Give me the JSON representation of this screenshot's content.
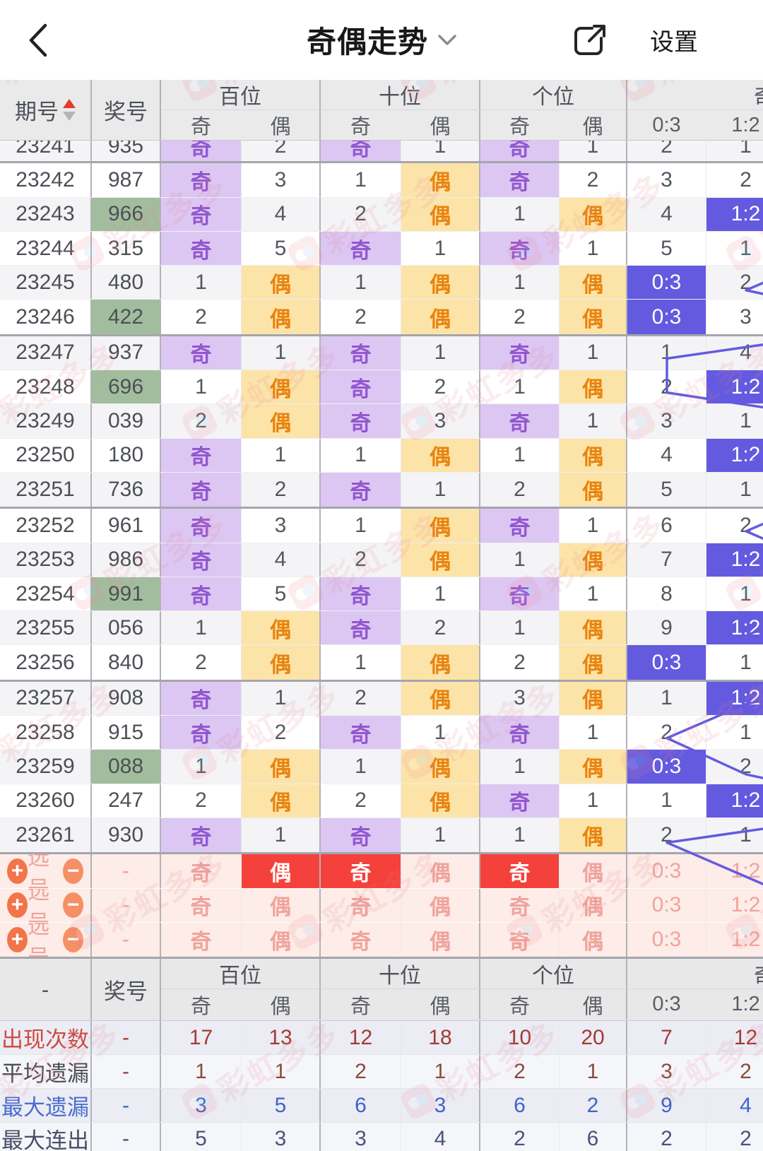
{
  "nav": {
    "title": "奇偶走势",
    "settings_label": "设置"
  },
  "watermark": {
    "text": "彩虹多多"
  },
  "table": {
    "period_header": "期号",
    "number_header": "奖号",
    "groups": [
      "百位",
      "十位",
      "个位",
      "奇偶比"
    ],
    "sub_headers": [
      "奇",
      "偶",
      "奇",
      "偶",
      "奇",
      "偶",
      "0:3",
      "1:2"
    ],
    "rows": [
      {
        "period": "23241",
        "number": "935",
        "green": false,
        "partial": true,
        "cells": [
          "奇",
          "2",
          "奇",
          "1",
          "奇",
          "1",
          "2",
          "1"
        ]
      },
      {
        "period": "23242",
        "number": "987",
        "green": false,
        "partial": false,
        "cells": [
          "奇",
          "3",
          "1",
          "偶",
          "奇",
          "2",
          "3",
          "2"
        ]
      },
      {
        "period": "23243",
        "number": "966",
        "green": true,
        "partial": false,
        "cells": [
          "奇",
          "4",
          "2",
          "偶",
          "1",
          "偶",
          "4",
          "1:2"
        ]
      },
      {
        "period": "23244",
        "number": "315",
        "green": false,
        "partial": false,
        "cells": [
          "奇",
          "5",
          "奇",
          "1",
          "奇",
          "1",
          "5",
          "1"
        ]
      },
      {
        "period": "23245",
        "number": "480",
        "green": false,
        "partial": false,
        "cells": [
          "1",
          "偶",
          "1",
          "偶",
          "1",
          "偶",
          "0:3",
          "2"
        ]
      },
      {
        "period": "23246",
        "number": "422",
        "green": true,
        "partial": false,
        "cells": [
          "2",
          "偶",
          "2",
          "偶",
          "2",
          "偶",
          "0:3",
          "3"
        ]
      },
      {
        "period": "23247",
        "number": "937",
        "green": false,
        "partial": false,
        "cells": [
          "奇",
          "1",
          "奇",
          "1",
          "奇",
          "1",
          "1",
          "4"
        ]
      },
      {
        "period": "23248",
        "number": "696",
        "green": true,
        "partial": false,
        "cells": [
          "1",
          "偶",
          "奇",
          "2",
          "1",
          "偶",
          "2",
          "1:2"
        ]
      },
      {
        "period": "23249",
        "number": "039",
        "green": false,
        "partial": false,
        "cells": [
          "2",
          "偶",
          "奇",
          "3",
          "奇",
          "1",
          "3",
          "1"
        ]
      },
      {
        "period": "23250",
        "number": "180",
        "green": false,
        "partial": false,
        "cells": [
          "奇",
          "1",
          "1",
          "偶",
          "1",
          "偶",
          "4",
          "1:2"
        ]
      },
      {
        "period": "23251",
        "number": "736",
        "green": false,
        "partial": false,
        "cells": [
          "奇",
          "2",
          "奇",
          "1",
          "2",
          "偶",
          "5",
          "1"
        ]
      },
      {
        "period": "23252",
        "number": "961",
        "green": false,
        "partial": false,
        "cells": [
          "奇",
          "3",
          "1",
          "偶",
          "奇",
          "1",
          "6",
          "2"
        ]
      },
      {
        "period": "23253",
        "number": "986",
        "green": false,
        "partial": false,
        "cells": [
          "奇",
          "4",
          "2",
          "偶",
          "1",
          "偶",
          "7",
          "1:2"
        ]
      },
      {
        "period": "23254",
        "number": "991",
        "green": true,
        "partial": false,
        "cells": [
          "奇",
          "5",
          "奇",
          "1",
          "奇",
          "1",
          "8",
          "1"
        ]
      },
      {
        "period": "23255",
        "number": "056",
        "green": false,
        "partial": false,
        "cells": [
          "1",
          "偶",
          "奇",
          "2",
          "1",
          "偶",
          "9",
          "1:2"
        ]
      },
      {
        "period": "23256",
        "number": "840",
        "green": false,
        "partial": false,
        "cells": [
          "2",
          "偶",
          "1",
          "偶",
          "2",
          "偶",
          "0:3",
          "1"
        ]
      },
      {
        "period": "23257",
        "number": "908",
        "green": false,
        "partial": false,
        "cells": [
          "奇",
          "1",
          "2",
          "偶",
          "3",
          "偶",
          "1",
          "1:2"
        ]
      },
      {
        "period": "23258",
        "number": "915",
        "green": false,
        "partial": false,
        "cells": [
          "奇",
          "2",
          "奇",
          "1",
          "奇",
          "1",
          "2",
          "1"
        ]
      },
      {
        "period": "23259",
        "number": "088",
        "green": true,
        "partial": false,
        "cells": [
          "1",
          "偶",
          "1",
          "偶",
          "1",
          "偶",
          "0:3",
          "2"
        ]
      },
      {
        "period": "23260",
        "number": "247",
        "green": false,
        "partial": false,
        "cells": [
          "2",
          "偶",
          "2",
          "偶",
          "奇",
          "1",
          "1",
          "1:2"
        ]
      },
      {
        "period": "23261",
        "number": "930",
        "green": false,
        "partial": false,
        "cells": [
          "奇",
          "1",
          "奇",
          "1",
          "1",
          "偶",
          "2",
          "1"
        ]
      }
    ],
    "selection_label": "选号",
    "selection_dash": "-",
    "selection_rows": [
      {
        "number": "-",
        "cells": [
          "奇",
          "偶",
          "奇",
          "偶",
          "奇",
          "偶",
          "0:3",
          "1:2"
        ],
        "selected": [
          false,
          true,
          true,
          false,
          true,
          false,
          false,
          false
        ]
      },
      {
        "number": "-",
        "cells": [
          "奇",
          "偶",
          "奇",
          "偶",
          "奇",
          "偶",
          "0:3",
          "1:2"
        ],
        "selected": [
          false,
          false,
          false,
          false,
          false,
          false,
          false,
          false
        ]
      },
      {
        "number": "-",
        "cells": [
          "奇",
          "偶",
          "奇",
          "偶",
          "奇",
          "偶",
          "0:3",
          "1:2"
        ],
        "selected": [
          false,
          false,
          false,
          false,
          false,
          false,
          false,
          false
        ]
      }
    ],
    "summary": {
      "period_label": "-",
      "number_label": "奖号",
      "rows": [
        {
          "label": "出现次数",
          "number": "-",
          "style": "count",
          "values": [
            "17",
            "13",
            "12",
            "18",
            "10",
            "20",
            "7",
            "12"
          ]
        },
        {
          "label": "平均遗漏",
          "number": "-",
          "style": "avg",
          "values": [
            "1",
            "1",
            "2",
            "1",
            "2",
            "1",
            "3",
            "2"
          ]
        },
        {
          "label": "最大遗漏",
          "number": "-",
          "style": "maxmiss",
          "values": [
            "3",
            "5",
            "6",
            "3",
            "6",
            "2",
            "9",
            "4"
          ]
        },
        {
          "label": "最大连出",
          "number": "-",
          "style": "maxrun",
          "values": [
            "5",
            "3",
            "3",
            "4",
            "2",
            "6",
            "2",
            "2"
          ]
        }
      ]
    }
  },
  "colors": {
    "odd_bg": "#dcc7f3",
    "odd_text": "#9257cf",
    "even_bg": "#fce4a9",
    "even_text": "#e9830e",
    "ratio_highlight": "#635ae0",
    "green_number_bg": "#a2bd9d",
    "selection_bg": "#fdece7",
    "selection_hit": "#f5413b",
    "selection_faded": "#f0a39d",
    "trend_line": "#635ae0"
  }
}
